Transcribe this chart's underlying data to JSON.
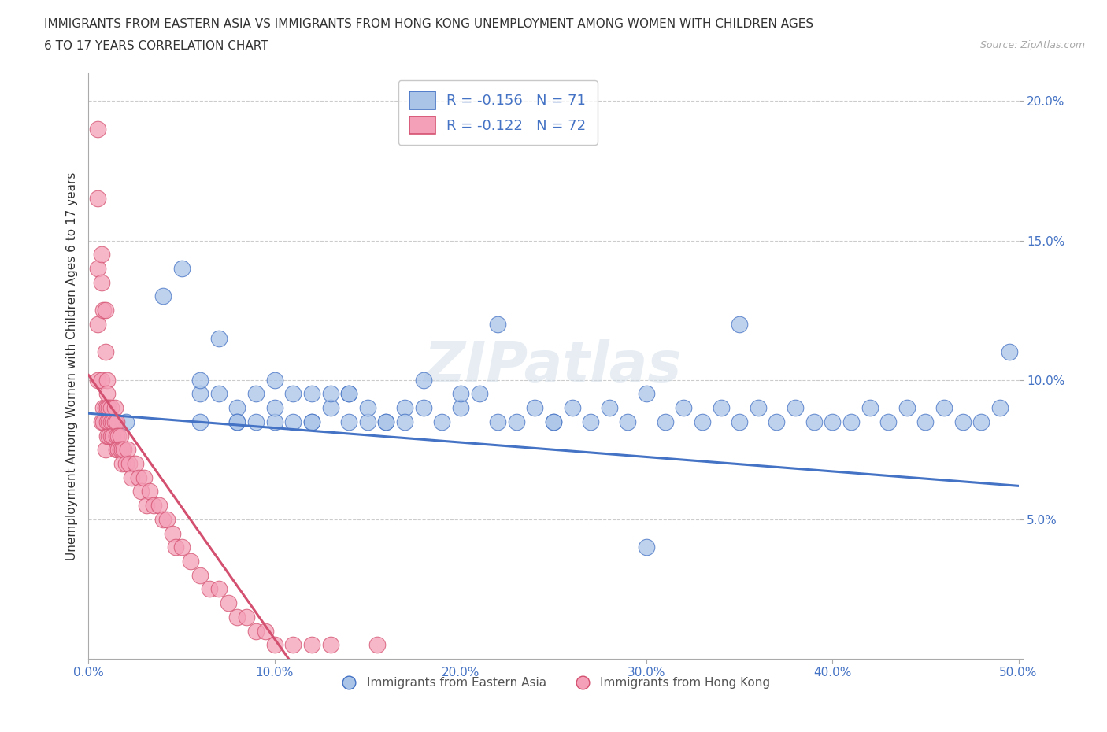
{
  "title_line1": "IMMIGRANTS FROM EASTERN ASIA VS IMMIGRANTS FROM HONG KONG UNEMPLOYMENT AMONG WOMEN WITH CHILDREN AGES",
  "title_line2": "6 TO 17 YEARS CORRELATION CHART",
  "source": "Source: ZipAtlas.com",
  "ylabel": "Unemployment Among Women with Children Ages 6 to 17 years",
  "xlim": [
    0.0,
    0.5
  ],
  "ylim": [
    0.0,
    0.21
  ],
  "xticks": [
    0.0,
    0.1,
    0.2,
    0.3,
    0.4,
    0.5
  ],
  "xticklabels": [
    "0.0%",
    "10.0%",
    "20.0%",
    "30.0%",
    "40.0%",
    "50.0%"
  ],
  "yticks": [
    0.0,
    0.05,
    0.1,
    0.15,
    0.2
  ],
  "yticklabels": [
    "",
    "5.0%",
    "10.0%",
    "15.0%",
    "20.0%"
  ],
  "legend_label1": "R = -0.156   N = 71",
  "legend_label2": "R = -0.122   N = 72",
  "legend_bottom_label1": "Immigrants from Eastern Asia",
  "legend_bottom_label2": "Immigrants from Hong Kong",
  "color_blue": "#aac4e8",
  "color_pink": "#f4a0b8",
  "color_blue_line": "#4472c4",
  "color_pink_line": "#d45070",
  "watermark": "ZIPatlas",
  "blue_scatter_x": [
    0.02,
    0.04,
    0.05,
    0.06,
    0.06,
    0.07,
    0.07,
    0.08,
    0.08,
    0.09,
    0.09,
    0.1,
    0.1,
    0.11,
    0.11,
    0.12,
    0.12,
    0.13,
    0.13,
    0.14,
    0.14,
    0.15,
    0.15,
    0.16,
    0.17,
    0.17,
    0.18,
    0.19,
    0.2,
    0.2,
    0.21,
    0.22,
    0.23,
    0.24,
    0.25,
    0.26,
    0.27,
    0.28,
    0.29,
    0.3,
    0.31,
    0.32,
    0.33,
    0.34,
    0.35,
    0.36,
    0.37,
    0.38,
    0.39,
    0.4,
    0.41,
    0.42,
    0.43,
    0.44,
    0.45,
    0.46,
    0.47,
    0.48,
    0.49,
    0.495,
    0.35,
    0.22,
    0.3,
    0.18,
    0.25,
    0.14,
    0.1,
    0.06,
    0.08,
    0.12,
    0.16
  ],
  "blue_scatter_y": [
    0.085,
    0.13,
    0.14,
    0.085,
    0.095,
    0.115,
    0.095,
    0.09,
    0.085,
    0.085,
    0.095,
    0.1,
    0.085,
    0.085,
    0.095,
    0.085,
    0.095,
    0.09,
    0.095,
    0.085,
    0.095,
    0.085,
    0.09,
    0.085,
    0.09,
    0.085,
    0.09,
    0.085,
    0.09,
    0.095,
    0.095,
    0.085,
    0.085,
    0.09,
    0.085,
    0.09,
    0.085,
    0.09,
    0.085,
    0.04,
    0.085,
    0.09,
    0.085,
    0.09,
    0.085,
    0.09,
    0.085,
    0.09,
    0.085,
    0.085,
    0.085,
    0.09,
    0.085,
    0.09,
    0.085,
    0.09,
    0.085,
    0.085,
    0.09,
    0.11,
    0.12,
    0.12,
    0.095,
    0.1,
    0.085,
    0.095,
    0.09,
    0.1,
    0.085,
    0.085,
    0.085
  ],
  "pink_scatter_x": [
    0.005,
    0.005,
    0.005,
    0.005,
    0.005,
    0.007,
    0.007,
    0.007,
    0.007,
    0.008,
    0.008,
    0.008,
    0.009,
    0.009,
    0.009,
    0.009,
    0.01,
    0.01,
    0.01,
    0.01,
    0.01,
    0.011,
    0.011,
    0.011,
    0.012,
    0.012,
    0.012,
    0.013,
    0.013,
    0.014,
    0.014,
    0.015,
    0.015,
    0.015,
    0.016,
    0.016,
    0.017,
    0.017,
    0.018,
    0.018,
    0.019,
    0.02,
    0.021,
    0.022,
    0.023,
    0.025,
    0.027,
    0.028,
    0.03,
    0.031,
    0.033,
    0.035,
    0.038,
    0.04,
    0.042,
    0.045,
    0.047,
    0.05,
    0.055,
    0.06,
    0.065,
    0.07,
    0.075,
    0.08,
    0.085,
    0.09,
    0.095,
    0.1,
    0.11,
    0.12,
    0.13,
    0.155
  ],
  "pink_scatter_y": [
    0.19,
    0.165,
    0.14,
    0.12,
    0.1,
    0.145,
    0.135,
    0.1,
    0.085,
    0.125,
    0.09,
    0.085,
    0.125,
    0.11,
    0.09,
    0.075,
    0.1,
    0.095,
    0.09,
    0.085,
    0.08,
    0.09,
    0.085,
    0.08,
    0.09,
    0.085,
    0.08,
    0.085,
    0.08,
    0.09,
    0.085,
    0.085,
    0.08,
    0.075,
    0.08,
    0.075,
    0.08,
    0.075,
    0.075,
    0.07,
    0.075,
    0.07,
    0.075,
    0.07,
    0.065,
    0.07,
    0.065,
    0.06,
    0.065,
    0.055,
    0.06,
    0.055,
    0.055,
    0.05,
    0.05,
    0.045,
    0.04,
    0.04,
    0.035,
    0.03,
    0.025,
    0.025,
    0.02,
    0.015,
    0.015,
    0.01,
    0.01,
    0.005,
    0.005,
    0.005,
    0.005,
    0.005
  ]
}
